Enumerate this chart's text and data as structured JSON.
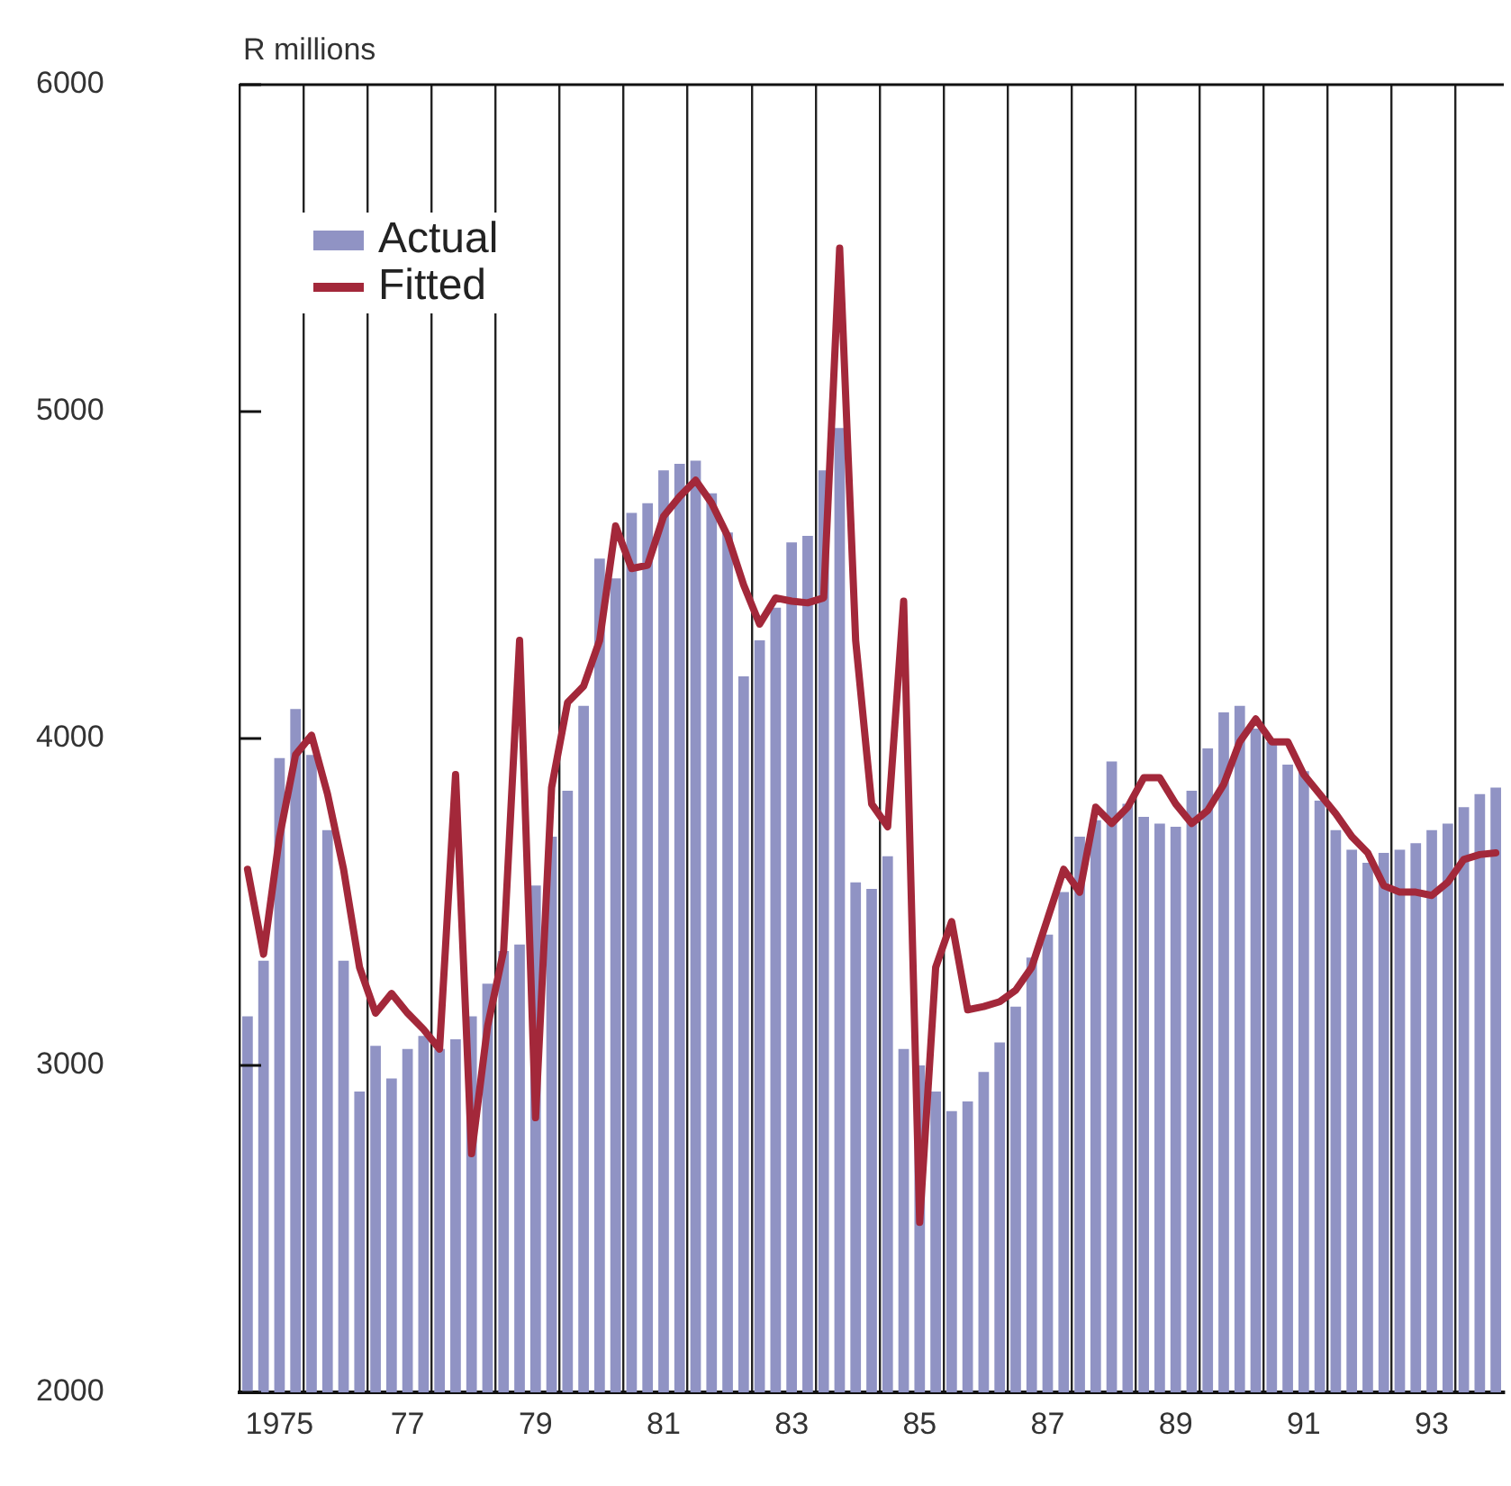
{
  "chart_data": {
    "type": "bar",
    "ylabel": "R millions",
    "categories": [
      null,
      null,
      "1975",
      null,
      null,
      null,
      null,
      null,
      null,
      null,
      "77",
      null,
      null,
      null,
      null,
      null,
      null,
      null,
      "79",
      null,
      null,
      null,
      null,
      null,
      null,
      null,
      "81",
      null,
      null,
      null,
      null,
      null,
      null,
      null,
      "83",
      null,
      null,
      null,
      null,
      null,
      null,
      null,
      "85",
      null,
      null,
      null,
      null,
      null,
      null,
      null,
      "87",
      null,
      null,
      null,
      null,
      null,
      null,
      null,
      "89",
      null,
      null,
      null,
      null,
      null,
      null,
      null,
      "91",
      null,
      null,
      null,
      null,
      null,
      null,
      null,
      "93",
      null,
      null,
      null,
      null
    ],
    "series": [
      {
        "name": "Actual",
        "type": "bar",
        "color": "#9093c4",
        "values": [
          3150,
          3320,
          3940,
          4090,
          3950,
          3720,
          3320,
          2920,
          3060,
          2960,
          3050,
          3090,
          3050,
          3080,
          3150,
          3250,
          3350,
          3370,
          3550,
          3700,
          3840,
          4100,
          4550,
          4490,
          4690,
          4720,
          4820,
          4840,
          4850,
          4750,
          4630,
          4190,
          4300,
          4400,
          4600,
          4620,
          4820,
          4950,
          3560,
          3540,
          3640,
          3050,
          3000,
          2920,
          2860,
          2890,
          2980,
          3070,
          3180,
          3330,
          3400,
          3530,
          3700,
          3750,
          3930,
          3800,
          3760,
          3740,
          3730,
          3840,
          3970,
          4080,
          4100,
          4030,
          3990,
          3920,
          3900,
          3810,
          3720,
          3660,
          3620,
          3650,
          3660,
          3680,
          3720,
          3740,
          3790,
          3830,
          3850
        ]
      },
      {
        "name": "Fitted",
        "type": "line",
        "color": "#a3283a",
        "values": [
          3600,
          3340,
          3700,
          3950,
          4010,
          3830,
          3600,
          3300,
          3160,
          3220,
          3160,
          3110,
          3050,
          3890,
          2730,
          3120,
          3350,
          4300,
          2840,
          3850,
          4110,
          4160,
          4300,
          4650,
          4520,
          4530,
          4680,
          4740,
          4790,
          4720,
          4620,
          4470,
          4350,
          4430,
          4420,
          4415,
          4430,
          5500,
          4300,
          3800,
          3730,
          4420,
          2520,
          3300,
          3440,
          3170,
          3180,
          3195,
          3230,
          3300,
          3450,
          3600,
          3530,
          3790,
          3740,
          3790,
          3880,
          3880,
          3800,
          3740,
          3780,
          3860,
          3990,
          4060,
          3990,
          3990,
          3890,
          3830,
          3770,
          3700,
          3650,
          3550,
          3530,
          3530,
          3520,
          3560,
          3630,
          3645,
          3650
        ]
      }
    ],
    "ylim": [
      2000,
      6000
    ],
    "yticks": [
      2000,
      3000,
      4000,
      5000,
      6000
    ],
    "grid": "x",
    "legend": "top left",
    "marker": "none",
    "line_style": "solid"
  }
}
